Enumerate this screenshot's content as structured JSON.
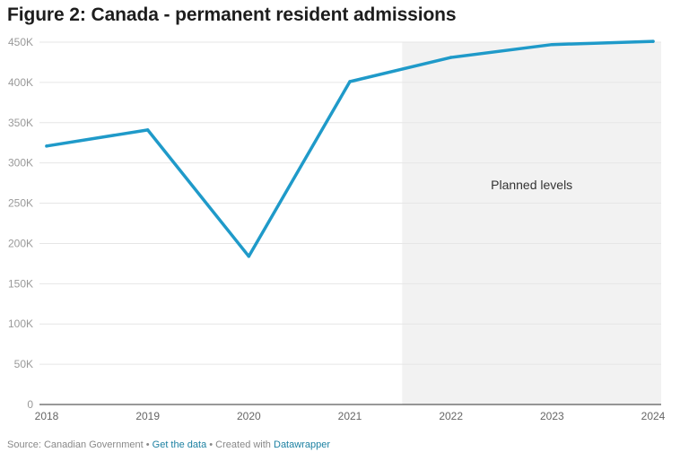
{
  "chart_data": {
    "type": "line",
    "title": "Figure 2: Canada - permanent resident admissions",
    "xlabel": "",
    "ylabel": "",
    "x": [
      "2018",
      "2019",
      "2020",
      "2021",
      "2022",
      "2023",
      "2024"
    ],
    "series": [
      {
        "name": "Permanent resident admissions",
        "values": [
          321000,
          341000,
          184000,
          401000,
          431000,
          447000,
          451000
        ]
      }
    ],
    "ylim": [
      0,
      450000
    ],
    "yticks": [
      0,
      50000,
      100000,
      150000,
      200000,
      250000,
      300000,
      350000,
      400000,
      450000
    ],
    "ytick_labels": [
      "0",
      "50K",
      "100K",
      "150K",
      "200K",
      "250K",
      "300K",
      "350K",
      "400K",
      "450K"
    ],
    "shaded_region": {
      "from": "2022",
      "to": "2024",
      "label": "Planned levels"
    },
    "grid": true,
    "line_color": "#1f9ac9",
    "shade_color": "#f2f2f2"
  },
  "footer": {
    "source": "Source: Canadian Government",
    "sep1": "•",
    "get_data": "Get the data",
    "sep2": "•",
    "created_with": "Created with",
    "tool": "Datawrapper"
  }
}
